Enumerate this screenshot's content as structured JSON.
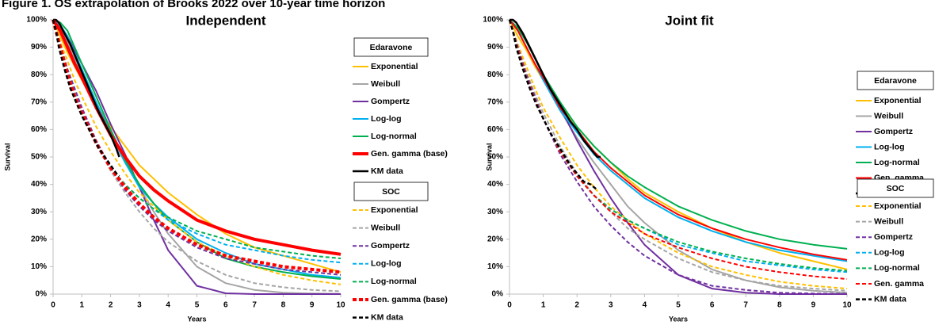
{
  "title": "Figure 1. OS extrapolation of Brooks 2022 over 10-year time horizon",
  "chart_data": [
    {
      "type": "line",
      "title": "Independent",
      "x_label": "Years",
      "y_label": "Survival",
      "x": [
        0,
        0.25,
        0.5,
        0.75,
        1,
        1.5,
        2,
        2.5,
        3,
        3.5,
        4,
        5,
        6,
        7,
        8,
        9,
        10
      ],
      "xlim": [
        0,
        10
      ],
      "xticks": [
        0,
        1,
        2,
        3,
        4,
        5,
        6,
        7,
        8,
        9,
        10
      ],
      "ylim": [
        0,
        100
      ],
      "yticks": [
        {
          "value": 0,
          "label": "0%"
        },
        {
          "value": 10,
          "label": "10%"
        },
        {
          "value": 20,
          "label": "20%"
        },
        {
          "value": 30,
          "label": "30%"
        },
        {
          "value": 40,
          "label": "40%"
        },
        {
          "value": 50,
          "label": "50%"
        },
        {
          "value": 60,
          "label": "60%"
        },
        {
          "value": 70,
          "label": "70%"
        },
        {
          "value": 80,
          "label": "80%"
        },
        {
          "value": 90,
          "label": "90%"
        },
        {
          "value": 100,
          "label": "100%"
        }
      ],
      "grid": false,
      "groups": [
        {
          "name": "Edaravone",
          "series": [
            {
              "name": "Exponential",
              "color": "#FFC000",
              "dashed": false,
              "width": 2,
              "values": [
                100,
                94,
                88,
                83,
                78,
                69,
                61,
                54,
                47,
                42,
                37,
                29,
                22,
                17,
                14,
                11,
                8
              ]
            },
            {
              "name": "Weibull",
              "color": "#A5A5A5",
              "dashed": false,
              "width": 2,
              "values": [
                100,
                97,
                92,
                86,
                80,
                69,
                58,
                48,
                39,
                30,
                22,
                10,
                4,
                1.5,
                0.5,
                0.2,
                0.1
              ]
            },
            {
              "name": "Gompertz",
              "color": "#7030A0",
              "dashed": false,
              "width": 2,
              "values": [
                100,
                98,
                94,
                89,
                84,
                74,
                62,
                51,
                39,
                27,
                16,
                3,
                0.3,
                0,
                0,
                0,
                0
              ]
            },
            {
              "name": "Log-log",
              "color": "#00B0F0",
              "dashed": false,
              "width": 2,
              "values": [
                100,
                98,
                94,
                88,
                82,
                70,
                59,
                48,
                39,
                33,
                28,
                20,
                15,
                11,
                9,
                7,
                6
              ]
            },
            {
              "name": "Log-normal",
              "color": "#00B050",
              "dashed": false,
              "width": 2,
              "values": [
                100,
                99,
                96,
                90,
                84,
                72,
                60,
                49,
                40,
                33,
                27,
                19,
                13,
                10,
                8,
                6.5,
                5.5
              ]
            },
            {
              "name": "Gen. gamma (base)",
              "color": "#FF0000",
              "dashed": false,
              "width": 4,
              "values": [
                100,
                96,
                90,
                84,
                79,
                68,
                58,
                50,
                43,
                38,
                34,
                27,
                23,
                20,
                18,
                16,
                14.5
              ]
            },
            {
              "name": "KM data",
              "color": "#000000",
              "dashed": false,
              "width": 2.5,
              "x": [
                0,
                0.1,
                0.2,
                0.4,
                0.6,
                0.8,
                1.0,
                1.2,
                1.4,
                1.6,
                1.8,
                2.0,
                2.2,
                2.3
              ],
              "values": [
                100,
                100,
                99,
                95,
                91,
                86,
                81,
                76,
                71,
                66,
                62,
                58,
                53,
                50
              ]
            }
          ]
        },
        {
          "name": "SOC",
          "series": [
            {
              "name": "Exponential",
              "color": "#FFC000",
              "dashed": true,
              "width": 2,
              "values": [
                100,
                92,
                85,
                78,
                72,
                61,
                52,
                44,
                37,
                32,
                27,
                19,
                14,
                10,
                7,
                5,
                3.5
              ]
            },
            {
              "name": "Weibull",
              "color": "#A5A5A5",
              "dashed": true,
              "width": 2,
              "values": [
                100,
                90,
                82,
                74,
                67,
                55,
                45,
                37,
                30,
                24,
                19,
                12,
                7,
                4,
                2.5,
                1.5,
                1
              ]
            },
            {
              "name": "Gompertz",
              "color": "#7030A0",
              "dashed": true,
              "width": 2,
              "values": [
                100,
                91,
                82,
                75,
                68,
                56,
                46,
                38,
                32,
                27,
                23,
                17,
                13,
                11,
                9,
                8,
                7
              ]
            },
            {
              "name": "Log-log",
              "color": "#00B0F0",
              "dashed": true,
              "width": 2,
              "values": [
                100,
                91,
                81,
                73,
                66,
                55,
                46,
                40,
                35,
                31,
                27,
                22,
                18,
                16,
                14,
                12.5,
                11.5
              ]
            },
            {
              "name": "Log-normal",
              "color": "#00B050",
              "dashed": true,
              "width": 2,
              "values": [
                100,
                91,
                81,
                73,
                66,
                55,
                46,
                40,
                35,
                31,
                28,
                23,
                20,
                17,
                15.5,
                14,
                13
              ]
            },
            {
              "name": "Gen. gamma (base)",
              "color": "#FF0000",
              "dashed": true,
              "width": 4,
              "values": [
                100,
                90,
                80,
                72,
                66,
                55,
                46,
                39,
                33,
                28,
                24,
                18,
                14,
                12,
                10,
                9,
                8
              ]
            },
            {
              "name": "KM data",
              "color": "#000000",
              "dashed": true,
              "width": 2.5,
              "x": [
                0,
                0.1,
                0.2,
                0.4,
                0.6,
                0.8,
                1.0,
                1.2,
                1.4,
                1.6,
                1.8,
                2.0,
                2.2,
                2.3
              ],
              "values": [
                100,
                96,
                90,
                82,
                75,
                70,
                65,
                61,
                57,
                53,
                50,
                47,
                44,
                43
              ]
            }
          ]
        }
      ]
    },
    {
      "type": "line",
      "title": "Joint fit",
      "x_label": "Years",
      "y_label": "Survival",
      "x": [
        0,
        0.25,
        0.5,
        0.75,
        1,
        1.5,
        2,
        2.5,
        3,
        3.5,
        4,
        5,
        6,
        7,
        8,
        9,
        10
      ],
      "xlim": [
        0,
        10
      ],
      "xticks": [
        0,
        1,
        2,
        3,
        4,
        5,
        6,
        7,
        8,
        9,
        10
      ],
      "ylim": [
        0,
        100
      ],
      "yticks": [
        {
          "value": 0,
          "label": "0%"
        },
        {
          "value": 10,
          "label": "10%"
        },
        {
          "value": 20,
          "label": "20%"
        },
        {
          "value": 30,
          "label": "30%"
        },
        {
          "value": 40,
          "label": "40%"
        },
        {
          "value": 50,
          "label": "50%"
        },
        {
          "value": 60,
          "label": "60%"
        },
        {
          "value": 70,
          "label": "70%"
        },
        {
          "value": 80,
          "label": "80%"
        },
        {
          "value": 90,
          "label": "90%"
        },
        {
          "value": 100,
          "label": "100%"
        }
      ],
      "grid": false,
      "groups": [
        {
          "name": "Edaravone",
          "series": [
            {
              "name": "Exponential",
              "color": "#FFC000",
              "dashed": false,
              "width": 2,
              "values": [
                100,
                94,
                89,
                83,
                78,
                69,
                61,
                54,
                48,
                42,
                37,
                30,
                24,
                19,
                15,
                12,
                9
              ]
            },
            {
              "name": "Weibull",
              "color": "#A5A5A5",
              "dashed": false,
              "width": 2,
              "values": [
                100,
                96,
                90,
                84,
                78,
                67,
                57,
                48,
                40,
                32,
                26,
                16,
                9,
                5,
                2.5,
                1.2,
                0.5
              ]
            },
            {
              "name": "Gompertz",
              "color": "#7030A0",
              "dashed": false,
              "width": 2,
              "values": [
                100,
                97,
                92,
                86,
                80,
                68,
                56,
                45,
                35,
                26,
                18,
                7,
                2,
                0.5,
                0,
                0,
                0
              ]
            },
            {
              "name": "Log-log",
              "color": "#00B0F0",
              "dashed": false,
              "width": 2,
              "values": [
                100,
                96,
                90,
                84,
                78,
                67,
                59,
                51,
                45,
                40,
                35,
                28,
                23,
                19,
                16,
                14,
                12
              ]
            },
            {
              "name": "Log-normal",
              "color": "#00B050",
              "dashed": false,
              "width": 2,
              "values": [
                100,
                97,
                92,
                86,
                80,
                70,
                61,
                54,
                48,
                43,
                39,
                32,
                27,
                23,
                20,
                18,
                16.5
              ]
            },
            {
              "name": "Gen. gamma",
              "color": "#FF0000",
              "dashed": false,
              "width": 2,
              "values": [
                100,
                96,
                90,
                84,
                79,
                68,
                60,
                52,
                46,
                41,
                36,
                29,
                24,
                20,
                17,
                14.5,
                12.5
              ]
            },
            {
              "name": "KM data",
              "color": "#000000",
              "dashed": false,
              "width": 2.5,
              "x": [
                0,
                0.1,
                0.2,
                0.4,
                0.6,
                0.8,
                1.0,
                1.2,
                1.4,
                1.6,
                1.8,
                2.0,
                2.2,
                2.4,
                2.6,
                2.7
              ],
              "values": [
                100,
                100,
                99,
                95,
                90,
                85,
                80,
                75,
                71,
                67,
                63,
                60,
                56,
                53,
                50,
                50
              ]
            }
          ]
        },
        {
          "name": "SOC",
          "series": [
            {
              "name": "Exponential",
              "color": "#FFC000",
              "dashed": true,
              "width": 2,
              "values": [
                100,
                91,
                83,
                75,
                68,
                57,
                47,
                39,
                32,
                27,
                22,
                15,
                10,
                7,
                4.5,
                3,
                2
              ]
            },
            {
              "name": "Weibull",
              "color": "#A5A5A5",
              "dashed": true,
              "width": 2,
              "values": [
                100,
                90,
                81,
                73,
                66,
                54,
                44,
                36,
                30,
                24,
                20,
                13,
                8,
                5,
                3,
                2,
                1.2
              ]
            },
            {
              "name": "Gompertz",
              "color": "#7030A0",
              "dashed": true,
              "width": 2,
              "values": [
                100,
                90,
                80,
                72,
                64,
                51,
                41,
                32,
                25,
                19,
                14,
                7,
                3,
                1.5,
                0.5,
                0.2,
                0.1
              ]
            },
            {
              "name": "Log-log",
              "color": "#00B0F0",
              "dashed": true,
              "width": 2,
              "values": [
                100,
                89,
                79,
                71,
                64,
                52,
                43,
                36,
                31,
                27,
                24,
                18,
                15,
                12,
                10.5,
                9,
                8
              ]
            },
            {
              "name": "Log-normal",
              "color": "#00B050",
              "dashed": true,
              "width": 2,
              "values": [
                100,
                89,
                79,
                71,
                64,
                52,
                43,
                36,
                31,
                27,
                24,
                19,
                15.5,
                13,
                11,
                9.5,
                8.5
              ]
            },
            {
              "name": "Gen. gamma",
              "color": "#FF0000",
              "dashed": true,
              "width": 2,
              "values": [
                100,
                89,
                79,
                71,
                64,
                52,
                43,
                36,
                30,
                26,
                22,
                17,
                13,
                10,
                8,
                6.5,
                5.5
              ]
            },
            {
              "name": "KM data",
              "color": "#000000",
              "dashed": true,
              "width": 2.5,
              "x": [
                0,
                0.1,
                0.2,
                0.4,
                0.6,
                0.8,
                1.0,
                1.2,
                1.4,
                1.6,
                1.8,
                2.0,
                2.2,
                2.4,
                2.6
              ],
              "values": [
                100,
                96,
                90,
                82,
                75,
                69,
                64,
                59,
                55,
                51,
                47,
                44,
                41,
                40,
                38
              ]
            }
          ]
        }
      ]
    }
  ]
}
